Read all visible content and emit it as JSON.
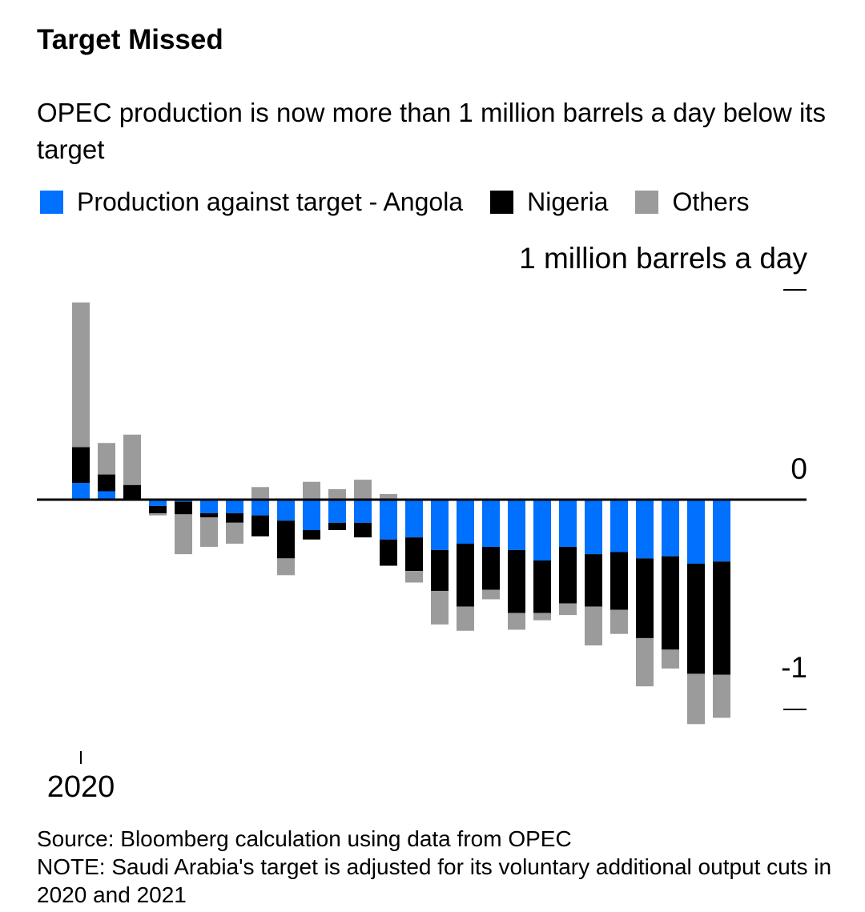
{
  "title": "Target Missed",
  "subtitle": "OPEC production is now more than 1 million barrels a day below its target",
  "legend": [
    {
      "label": "Production against target - Angola",
      "color": "#0070ff"
    },
    {
      "label": "Nigeria",
      "color": "#000000"
    },
    {
      "label": "Others",
      "color": "#9b9b9b"
    }
  ],
  "footer": {
    "source": "Source: Bloomberg calculation using data from OPEC",
    "note": "NOTE: Saudi Arabia's target is adjusted for its voluntary additional output cuts in 2020 and 2021"
  },
  "chart_data": {
    "type": "bar",
    "stacked": true,
    "title": "Target Missed",
    "ylabel": "1 million barrels a day",
    "ylim": [
      -1.1,
      1.0
    ],
    "yticks": [
      {
        "value": 1,
        "label": ""
      },
      {
        "value": 0,
        "label": "0"
      },
      {
        "value": -1,
        "label": "-1"
      }
    ],
    "xticks": [
      {
        "index": 0,
        "label": "2020"
      }
    ],
    "grid": false,
    "legend_position": "top",
    "series": [
      {
        "name": "Production against target - Angola",
        "color": "#0070ff",
        "values": [
          0.08,
          0.04,
          0,
          -0.03,
          -0.01,
          -0.065,
          -0.065,
          -0.075,
          -0.1,
          -0.145,
          -0.11,
          -0.11,
          -0.19,
          -0.18,
          -0.24,
          -0.21,
          -0.225,
          -0.24,
          -0.29,
          -0.225,
          -0.26,
          -0.25,
          -0.28,
          -0.27,
          -0.305,
          -0.295
        ]
      },
      {
        "name": "Nigeria",
        "color": "#000000",
        "values": [
          0.17,
          0.08,
          0.07,
          -0.035,
          -0.06,
          -0.02,
          -0.045,
          -0.1,
          -0.18,
          -0.045,
          -0.035,
          -0.07,
          -0.125,
          -0.16,
          -0.195,
          -0.3,
          -0.205,
          -0.3,
          -0.25,
          -0.27,
          -0.25,
          -0.275,
          -0.38,
          -0.445,
          -0.525,
          -0.54
        ]
      },
      {
        "name": "Others",
        "color": "#9b9b9b",
        "values": [
          0.69,
          0.15,
          0.24,
          -0.01,
          -0.19,
          -0.14,
          -0.1,
          0.06,
          -0.08,
          0.085,
          0.05,
          0.095,
          0.027,
          -0.055,
          -0.16,
          -0.115,
          -0.045,
          -0.08,
          -0.035,
          -0.055,
          -0.185,
          -0.115,
          -0.23,
          -0.09,
          -0.24,
          -0.205
        ]
      }
    ]
  }
}
